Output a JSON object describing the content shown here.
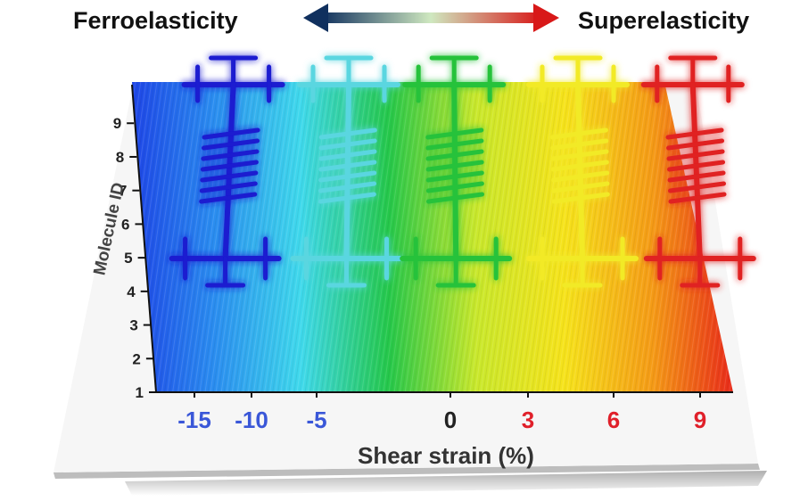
{
  "header": {
    "left_title": "Ferroelasticity",
    "right_title": "Superelasticity"
  },
  "chart_data": {
    "type": "heatmap",
    "xlabel": "Shear strain (%)",
    "ylabel": "Molecule ID",
    "x_ticks": [
      "-15",
      "-10",
      "-5",
      "0",
      "3",
      "6",
      "9"
    ],
    "x_tick_colors": [
      "#3a57d8",
      "#3a57d8",
      "#3a57d8",
      "#222222",
      "#e0202a",
      "#e0202a",
      "#e0202a"
    ],
    "y_ticks": [
      "1",
      "2",
      "3",
      "4",
      "5",
      "6",
      "7",
      "8",
      "9"
    ],
    "colormap": [
      "#1d3fe6",
      "#2a8cf0",
      "#3fd9ec",
      "#25c84a",
      "#c9e82c",
      "#f6e31b",
      "#f59b16",
      "#e8201a"
    ],
    "molecule_colors": [
      "#1a1ad0",
      "#5ad6e0",
      "#27c23a",
      "#f2ea28",
      "#e02020"
    ],
    "arrow_colors": [
      "#10305e",
      "#cfe8c0",
      "#d81818"
    ]
  }
}
